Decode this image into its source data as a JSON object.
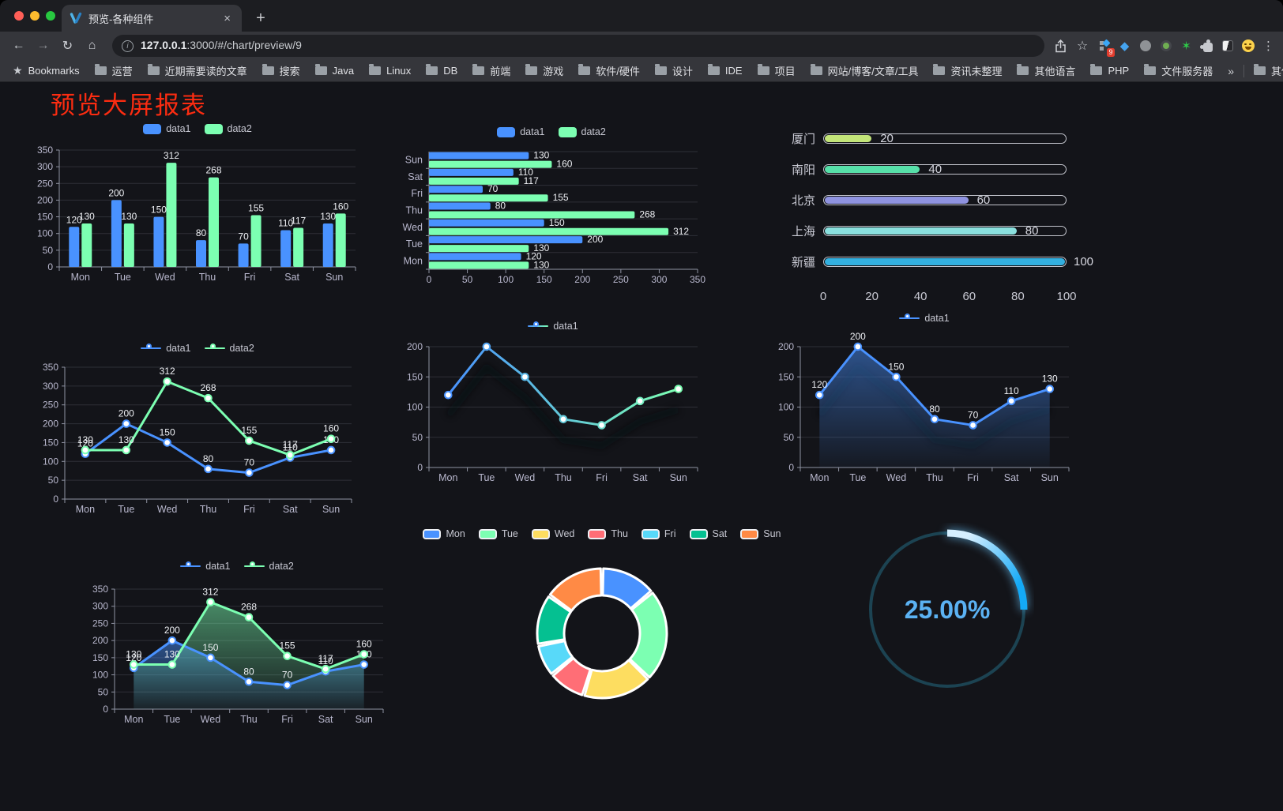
{
  "browser": {
    "tab_title": "预览-各种组件",
    "url_host": "127.0.0.1",
    "url_rest": ":3000/#/chart/preview/9",
    "bookmarks_label": "Bookmarks",
    "bookmarks": [
      "运营",
      "近期需要读的文章",
      "搜索",
      "Java",
      "Linux",
      "DB",
      "前端",
      "游戏",
      "软件/硬件",
      "设计",
      "IDE",
      "项目",
      "网站/博客/文章/工具",
      "资讯未整理",
      "其他语言",
      "PHP",
      "文件服务器"
    ],
    "overflow_chevron": "»",
    "other_bookmarks": "其他书签",
    "extension_badge": "9",
    "icons": {
      "back": "←",
      "forward": "→",
      "reload": "↻",
      "home": "⌂",
      "star": "☆",
      "menu": "⋮",
      "bm_star": "★",
      "info": "i",
      "new_tab": "+",
      "close_tab": "×"
    },
    "traffic_lights": [
      "#ff5f57",
      "#febc2e",
      "#28c840"
    ]
  },
  "page": {
    "title": "预览大屏报表",
    "title_color": "#fb2c11",
    "background": "#131419"
  },
  "chart_data": [
    {
      "type": "bar",
      "orientation": "vertical",
      "legend_style": "rect",
      "categories": [
        "Mon",
        "Tue",
        "Wed",
        "Thu",
        "Fri",
        "Sat",
        "Sun"
      ],
      "series": [
        {
          "name": "data1",
          "color": "#4992ff",
          "values": [
            120,
            200,
            150,
            80,
            70,
            110,
            130
          ]
        },
        {
          "name": "data2",
          "color": "#7cffb2",
          "values": [
            130,
            130,
            312,
            268,
            155,
            117,
            160
          ]
        }
      ],
      "ymax": 350,
      "ystep": 50,
      "show_labels": true
    },
    {
      "type": "bar",
      "orientation": "horizontal",
      "legend_style": "rect",
      "categories": [
        "Mon",
        "Tue",
        "Wed",
        "Thu",
        "Fri",
        "Sat",
        "Sun"
      ],
      "series": [
        {
          "name": "data1",
          "color": "#4992ff",
          "values": [
            120,
            200,
            150,
            80,
            70,
            110,
            130
          ]
        },
        {
          "name": "data2",
          "color": "#7cffb2",
          "values": [
            130,
            130,
            312,
            268,
            155,
            117,
            160
          ]
        }
      ],
      "xmax": 350,
      "xstep": 50,
      "show_labels": true
    },
    {
      "type": "progress",
      "max": 100,
      "ticks": [
        0,
        20,
        40,
        60,
        80,
        100
      ],
      "items": [
        {
          "label": "厦门",
          "value": 20,
          "color": "#c3e579"
        },
        {
          "label": "南阳",
          "value": 40,
          "color": "#57e0a9"
        },
        {
          "label": "北京",
          "value": 60,
          "color": "#8f93e0"
        },
        {
          "label": "上海",
          "value": 80,
          "color": "#8ae0de"
        },
        {
          "label": "新疆",
          "value": 100,
          "color": "#33b0e0"
        }
      ]
    },
    {
      "type": "line",
      "legend_style": "line",
      "categories": [
        "Mon",
        "Tue",
        "Wed",
        "Thu",
        "Fri",
        "Sat",
        "Sun"
      ],
      "series": [
        {
          "name": "data1",
          "color": "#4992ff",
          "values": [
            120,
            200,
            150,
            80,
            70,
            110,
            130
          ]
        },
        {
          "name": "data2",
          "color": "#7cffb2",
          "values": [
            130,
            130,
            312,
            268,
            155,
            117,
            160
          ]
        }
      ],
      "ymax": 350,
      "ystep": 50,
      "show_labels": true
    },
    {
      "type": "line",
      "legend_style": "line",
      "shadow": true,
      "categories": [
        "Mon",
        "Tue",
        "Wed",
        "Thu",
        "Fri",
        "Sat",
        "Sun"
      ],
      "series": [
        {
          "name": "data1",
          "color": "#4992ff",
          "color2": "#7cffb2",
          "values": [
            120,
            200,
            150,
            80,
            70,
            110,
            130
          ]
        }
      ],
      "ymax": 200,
      "ystep": 50,
      "show_labels": false
    },
    {
      "type": "line",
      "legend_style": "line",
      "shadow": true,
      "categories": [
        "Mon",
        "Tue",
        "Wed",
        "Thu",
        "Fri",
        "Sat",
        "Sun"
      ],
      "series": [
        {
          "name": "data1",
          "color": "#4992ff",
          "values": [
            120,
            200,
            150,
            80,
            70,
            110,
            130
          ],
          "area": true
        }
      ],
      "ymax": 200,
      "ystep": 50,
      "show_labels": true
    },
    {
      "type": "line",
      "legend_style": "line",
      "categories": [
        "Mon",
        "Tue",
        "Wed",
        "Thu",
        "Fri",
        "Sat",
        "Sun"
      ],
      "series": [
        {
          "name": "data1",
          "color": "#4992ff",
          "values": [
            120,
            200,
            150,
            80,
            70,
            110,
            130
          ],
          "area": true
        },
        {
          "name": "data2",
          "color": "#7cffb2",
          "values": [
            130,
            130,
            312,
            268,
            155,
            117,
            160
          ],
          "area": true
        }
      ],
      "ymax": 350,
      "ystep": 50,
      "show_labels": true
    },
    {
      "type": "pie",
      "legend_style": "rect-border",
      "legend": [
        "Mon",
        "Tue",
        "Wed",
        "Thu",
        "Fri",
        "Sat",
        "Sun"
      ],
      "values": [
        120,
        200,
        150,
        80,
        70,
        110,
        130
      ],
      "colors": [
        "#4992ff",
        "#7cffb2",
        "#fddd60",
        "#ff6e76",
        "#58d9f9",
        "#05c091",
        "#ff8a45"
      ]
    },
    {
      "type": "gauge",
      "label": "25.00%",
      "percent": 25,
      "track_color": "#1c4352",
      "arc_color_start": "#d6efff",
      "arc_color_end": "#14a9f6",
      "text_color": "#5bb2f3"
    }
  ]
}
